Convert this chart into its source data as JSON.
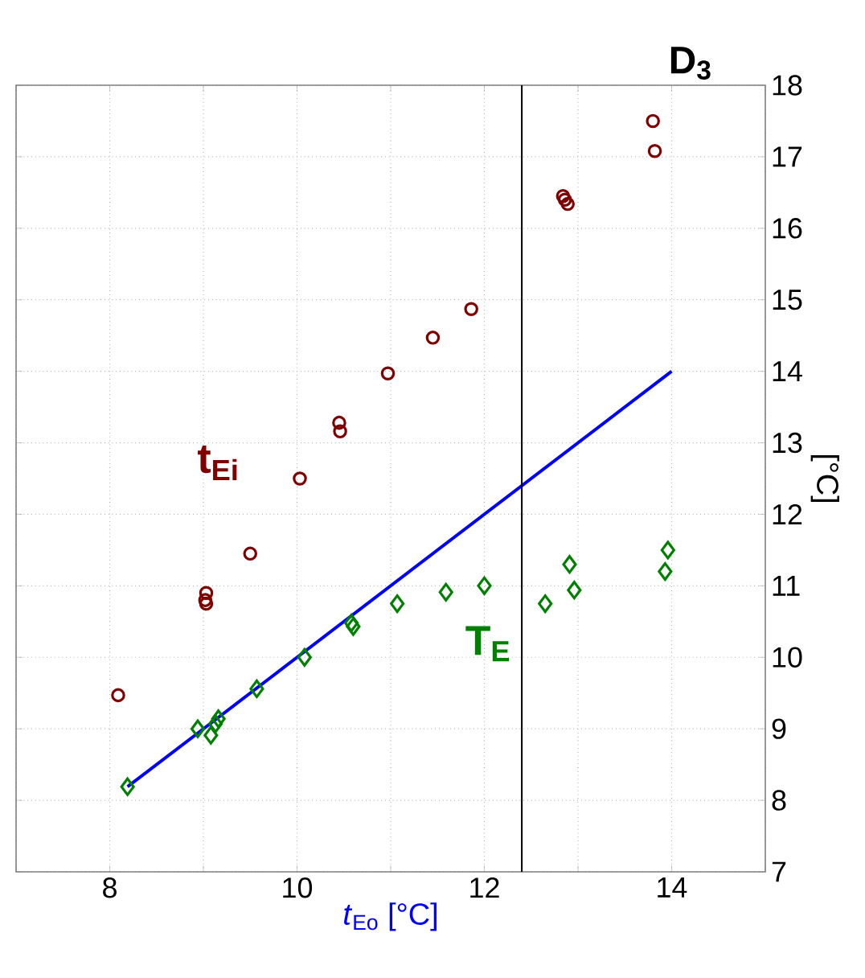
{
  "chart_data": {
    "type": "scatter",
    "title": "D$_{3}$",
    "xlabel": "*t*$_{Eo}$ [°C]",
    "ylabel": "[°C]",
    "xlim": [
      7,
      15
    ],
    "ylim": [
      7,
      18
    ],
    "xticks": [
      {
        "value": 7,
        "label": null
      },
      8,
      {
        "value": 9,
        "label": null
      },
      10,
      {
        "value": 11,
        "label": null
      },
      12,
      {
        "value": 13,
        "label": null
      },
      14,
      {
        "value": 15,
        "label": null
      }
    ],
    "yticks": [
      7,
      8,
      9,
      10,
      11,
      12,
      13,
      14,
      15,
      16,
      17,
      18
    ],
    "grid": true,
    "series": [
      {
        "name": "t$_{Ei}$",
        "color": "#800000",
        "marker": "circle",
        "x": [
          8.09,
          9.5,
          9.03,
          9.02,
          9.03,
          10.03,
          10.45,
          10.46,
          10.97,
          11.45,
          11.86,
          12.84,
          12.86,
          12.89,
          13.8,
          13.82
        ],
        "values": [
          9.47,
          11.45,
          10.9,
          10.8,
          10.75,
          12.5,
          13.28,
          13.16,
          13.97,
          14.47,
          14.87,
          16.45,
          16.4,
          16.34,
          17.5,
          17.08
        ]
      },
      {
        "name": "T$_{E}$",
        "color": "#008000",
        "marker": "diamond",
        "x": [
          8.19,
          8.94,
          9.08,
          9.13,
          9.16,
          9.57,
          10.08,
          10.58,
          10.6,
          11.07,
          11.59,
          12.0,
          12.65,
          12.91,
          12.96,
          13.96,
          13.93
        ],
        "values": [
          8.19,
          9.0,
          8.91,
          9.07,
          9.14,
          9.56,
          10.0,
          10.48,
          10.43,
          10.75,
          10.91,
          11.0,
          10.75,
          11.3,
          10.94,
          11.5,
          11.2
        ]
      },
      {
        "type": "line",
        "color": "#0000ff",
        "marker": "none",
        "x": [
          8.19,
          14
        ],
        "values": [
          8.19,
          14
        ]
      }
    ],
    "ref_lines": [
      {
        "axis": "x",
        "value": 12.4,
        "color": "#000000"
      }
    ]
  }
}
